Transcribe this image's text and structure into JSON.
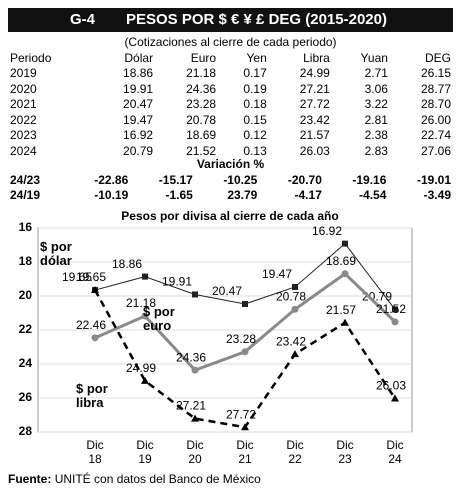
{
  "header": {
    "code": "G-4",
    "title": "PESOS POR $ € ¥ £ DEG (2015-2020)"
  },
  "table": {
    "subtitle": "(Cotizaciones al cierre de cada periodo)",
    "columns": [
      "Periodo",
      "Dólar",
      "Euro",
      "Yen",
      "Libra",
      "Yuan",
      "DEG"
    ],
    "rows": [
      [
        "2019",
        "18.86",
        "21.18",
        "0.17",
        "24.99",
        "2.71",
        "26.15"
      ],
      [
        "2020",
        "19.91",
        "24.36",
        "0.19",
        "27.21",
        "3.06",
        "28.77"
      ],
      [
        "2021",
        "20.47",
        "23.28",
        "0.18",
        "27.72",
        "3.22",
        "28.70"
      ],
      [
        "2022",
        "19.47",
        "20.78",
        "0.15",
        "23.42",
        "2.81",
        "26.00"
      ],
      [
        "2023",
        "16.92",
        "18.69",
        "0.12",
        "21.57",
        "2.38",
        "22.74"
      ],
      [
        "2024",
        "20.79",
        "21.52",
        "0.13",
        "26.03",
        "2.83",
        "27.06"
      ]
    ]
  },
  "variation": {
    "title": "Variación %",
    "rows": [
      [
        "24/23",
        "-22.86",
        "-15.17",
        "-10.25",
        "-20.70",
        "-19.16",
        "-19.01"
      ],
      [
        "24/19",
        "-10.19",
        "-1.65",
        "23.79",
        "-4.17",
        "-4.54",
        "-3.49"
      ]
    ]
  },
  "chart_data": {
    "type": "line",
    "title": "Pesos por divisa al cierre de cada año",
    "categories": [
      "Dic 18",
      "Dic 19",
      "Dic 20",
      "Dic 21",
      "Dic 22",
      "Dic 23",
      "Dic 24"
    ],
    "ylim": [
      16,
      28
    ],
    "yticks": [
      16,
      18,
      20,
      22,
      24,
      26,
      28
    ],
    "y_inverted": true,
    "grid": true,
    "series": [
      {
        "name": "$ por dólar",
        "color": "#222222",
        "marker": "square",
        "dash": false,
        "width": 1,
        "values": [
          19.65,
          18.86,
          19.91,
          20.47,
          19.47,
          16.92,
          20.79
        ]
      },
      {
        "name": "$ por euro",
        "color": "#8a8a8a",
        "marker": "circle",
        "dash": false,
        "width": 3,
        "values": [
          22.46,
          21.18,
          24.36,
          23.28,
          20.78,
          18.69,
          21.52
        ]
      },
      {
        "name": "$ por libra",
        "color": "#000000",
        "marker": "triangle",
        "dash": true,
        "width": 2.5,
        "values": [
          19.65,
          24.99,
          27.21,
          27.72,
          23.42,
          21.57,
          26.03
        ]
      }
    ]
  },
  "source": {
    "label": "Fuente:",
    "text": "UNITÉ con datos del Banco de México"
  }
}
